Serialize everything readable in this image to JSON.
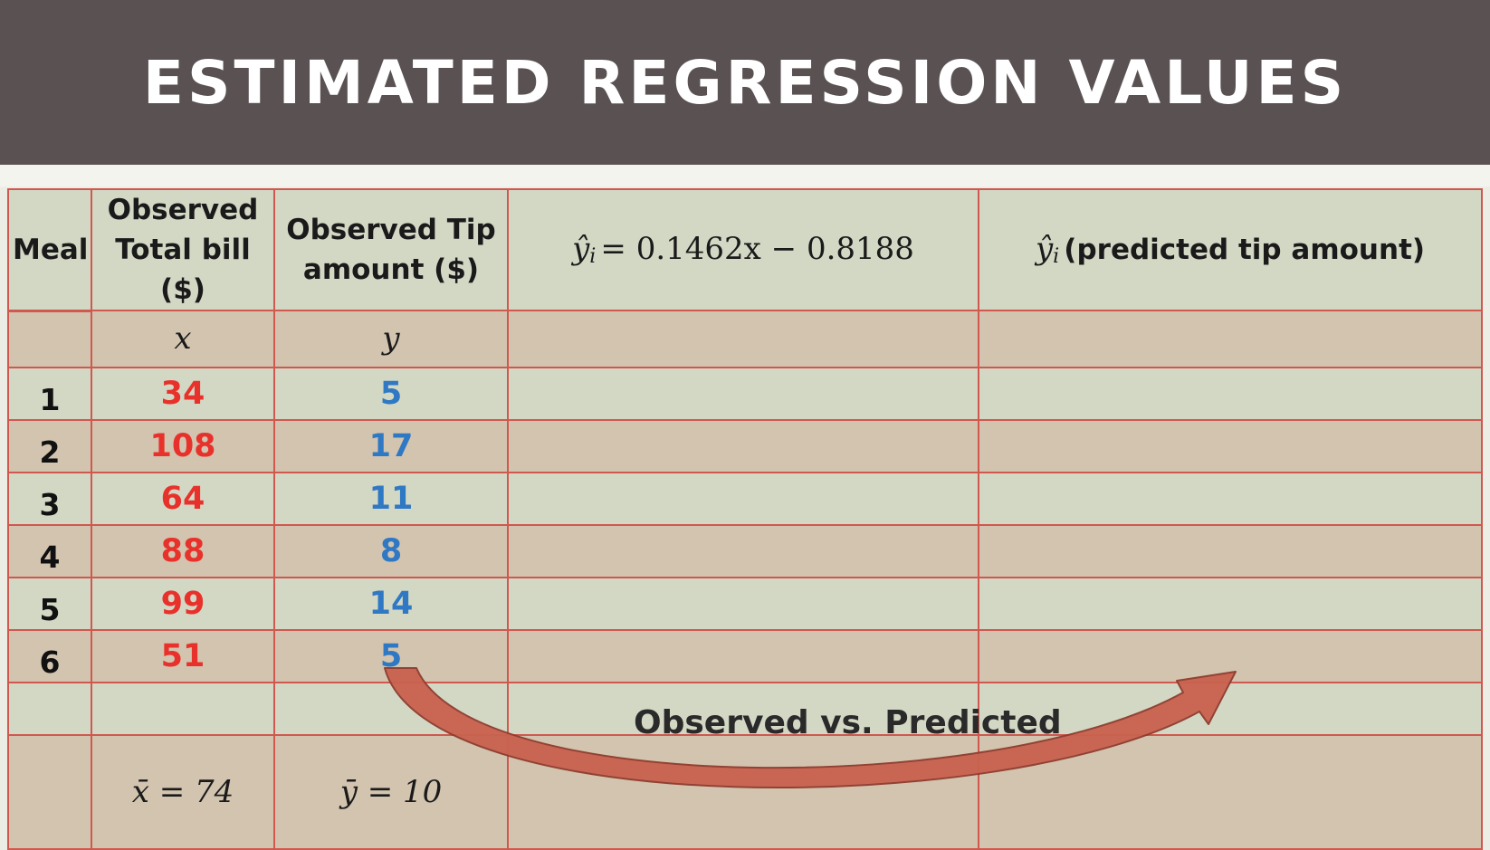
{
  "slide": {
    "title": "ESTIMATED REGRESSION VALUES"
  },
  "table": {
    "headers": {
      "meal": "Meal",
      "bill_line1": "Observed",
      "bill_line2": "Total bill ($)",
      "tip_line1": "Observed Tip",
      "tip_line2": "amount ($)",
      "equation_lhs": "ŷ",
      "equation_sub": "i",
      "equation_rhs": "= 0.1462x − 0.8188",
      "predicted_sym": "ŷ",
      "predicted_sub": "i",
      "predicted_label": "(predicted tip amount)"
    },
    "variables": {
      "x": "x",
      "y": "y"
    },
    "rows": [
      {
        "meal": "1",
        "x": "34",
        "y": "5"
      },
      {
        "meal": "2",
        "x": "108",
        "y": "17"
      },
      {
        "meal": "3",
        "x": "64",
        "y": "11"
      },
      {
        "meal": "4",
        "x": "88",
        "y": "8"
      },
      {
        "meal": "5",
        "x": "99",
        "y": "14"
      },
      {
        "meal": "6",
        "x": "51",
        "y": "5"
      }
    ],
    "means": {
      "x_mean": "x̄ = 74",
      "y_mean": "ȳ = 10"
    }
  },
  "annotation": {
    "label": "Observed vs. Predicted",
    "arrow_color": "#c9624f"
  },
  "colors": {
    "title_bg": "#5a5152",
    "x_values": "#e8312b",
    "y_values": "#2f78c4",
    "grid_lines": "#d0584f"
  }
}
